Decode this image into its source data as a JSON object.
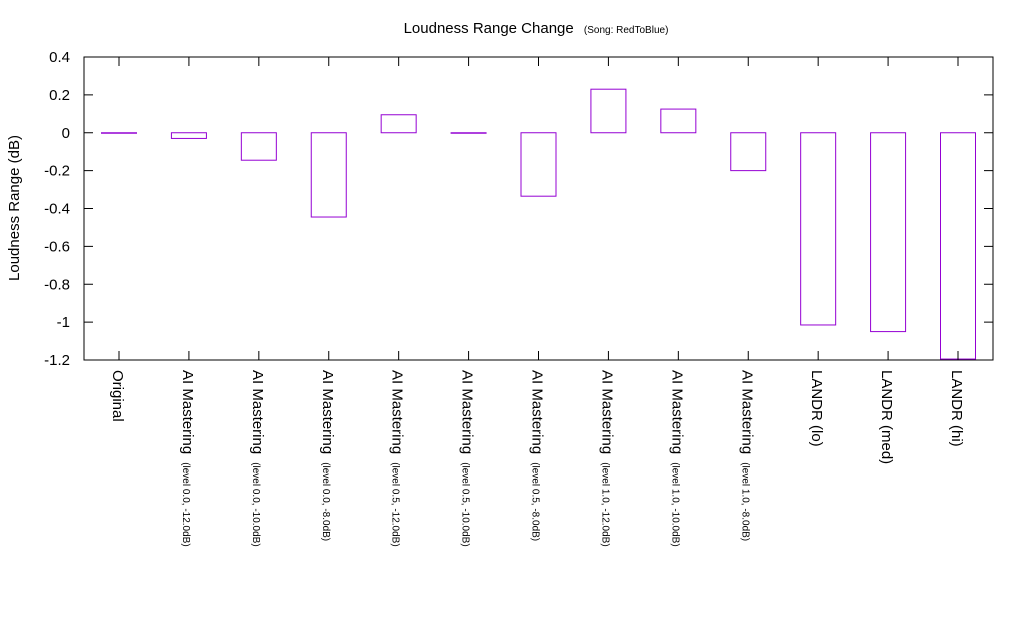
{
  "chart_data": {
    "type": "bar",
    "title": "Loudness Range Change",
    "subtitle": "(Song: RedToBlue)",
    "xlabel": "",
    "ylabel": "Loudness Range (dB)",
    "ylim": [
      -1.2,
      0.4
    ],
    "yticks": [
      "0.4",
      "0.2",
      "0",
      "-0.2",
      "-0.4",
      "-0.6",
      "-0.8",
      "-1",
      "-1.2"
    ],
    "ytick_values": [
      0.4,
      0.2,
      0,
      -0.2,
      -0.4,
      -0.6,
      -0.8,
      -1,
      -1.2
    ],
    "grid": false,
    "bar_color": "#9400d3",
    "categories": [
      {
        "main": "Original",
        "sub": ""
      },
      {
        "main": "AI Mastering",
        "sub": "(level 0.0, -12.0dB)"
      },
      {
        "main": "AI Mastering",
        "sub": "(level 0.0, -10.0dB)"
      },
      {
        "main": "AI Mastering",
        "sub": "(level 0.0, -8.0dB)"
      },
      {
        "main": "AI Mastering",
        "sub": "(level 0.5, -12.0dB)"
      },
      {
        "main": "AI Mastering",
        "sub": "(level 0.5, -10.0dB)"
      },
      {
        "main": "AI Mastering",
        "sub": "(level 0.5, -8.0dB)"
      },
      {
        "main": "AI Mastering",
        "sub": "(level 1.0, -12.0dB)"
      },
      {
        "main": "AI Mastering",
        "sub": "(level 1.0, -10.0dB)"
      },
      {
        "main": "AI Mastering",
        "sub": "(level 1.0, -8.0dB)"
      },
      {
        "main": "LANDR (lo)",
        "sub": ""
      },
      {
        "main": "LANDR (med)",
        "sub": ""
      },
      {
        "main": "LANDR (hi)",
        "sub": ""
      }
    ],
    "values": [
      0.0,
      -0.03,
      -0.145,
      -0.445,
      0.095,
      0.0,
      -0.335,
      0.23,
      0.125,
      -0.2,
      -1.015,
      -1.05,
      -1.195
    ]
  }
}
